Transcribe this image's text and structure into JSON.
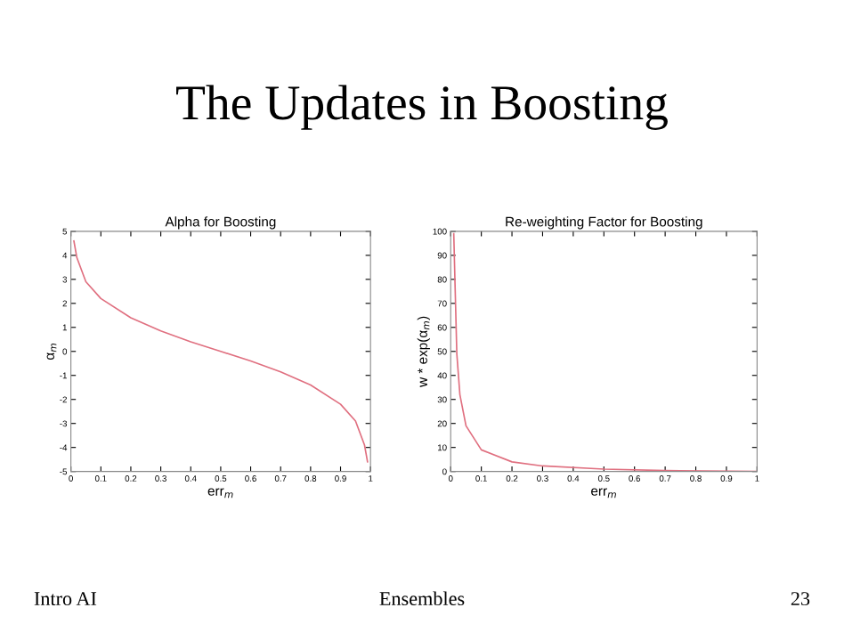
{
  "chart_data": [
    {
      "type": "line",
      "title": "Alpha for Boosting",
      "xlabel": "err$_{m}$",
      "ylabel": "α$_{m}$",
      "annotations": [
        "The Updates in Boosting",
        "Intro AI",
        "Ensembles",
        "23"
      ],
      "series": [
        {
          "color": "#e07080",
          "x": [
            0.01,
            0.02,
            0.05,
            0.1,
            0.2,
            0.3,
            0.4,
            0.5,
            0.6,
            0.7,
            0.8,
            0.9,
            0.95,
            0.98,
            0.99
          ],
          "values": [
            4.6,
            3.9,
            2.9,
            2.2,
            1.4,
            0.85,
            0.4,
            0,
            -0.4,
            -0.85,
            -1.4,
            -2.2,
            -2.9,
            -3.9,
            -4.6
          ]
        }
      ],
      "xlim": [
        0,
        1
      ],
      "xticks": [
        0,
        0.1,
        0.2,
        0.3,
        0.4,
        0.5,
        0.6,
        0.7,
        0.8,
        0.9,
        1
      ],
      "ylim": [
        -5,
        5
      ],
      "yticks": [
        -5,
        -4,
        -3,
        -2,
        -1,
        0,
        1,
        2,
        3,
        4,
        5
      ],
      "grid": false,
      "legend": false
    },
    {
      "type": "line",
      "title": "Re-weighting Factor for Boosting",
      "xlabel": "err$_{m}$",
      "ylabel": "w * exp(α$_{m}$)",
      "series": [
        {
          "color": "#e07080",
          "x": [
            0.01,
            0.02,
            0.03,
            0.05,
            0.1,
            0.2,
            0.3,
            0.5,
            0.7,
            1.0
          ],
          "values": [
            99,
            49,
            32,
            19,
            9,
            4,
            2.3,
            1,
            0.4,
            0
          ]
        }
      ],
      "xlim": [
        0,
        1
      ],
      "xticks": [
        0,
        0.1,
        0.2,
        0.3,
        0.4,
        0.5,
        0.6,
        0.7,
        0.8,
        0.9,
        1
      ],
      "ylim": [
        0,
        100
      ],
      "yticks": [
        0,
        10,
        20,
        30,
        40,
        50,
        60,
        70,
        80,
        90,
        100
      ],
      "grid": false,
      "legend": false
    }
  ]
}
